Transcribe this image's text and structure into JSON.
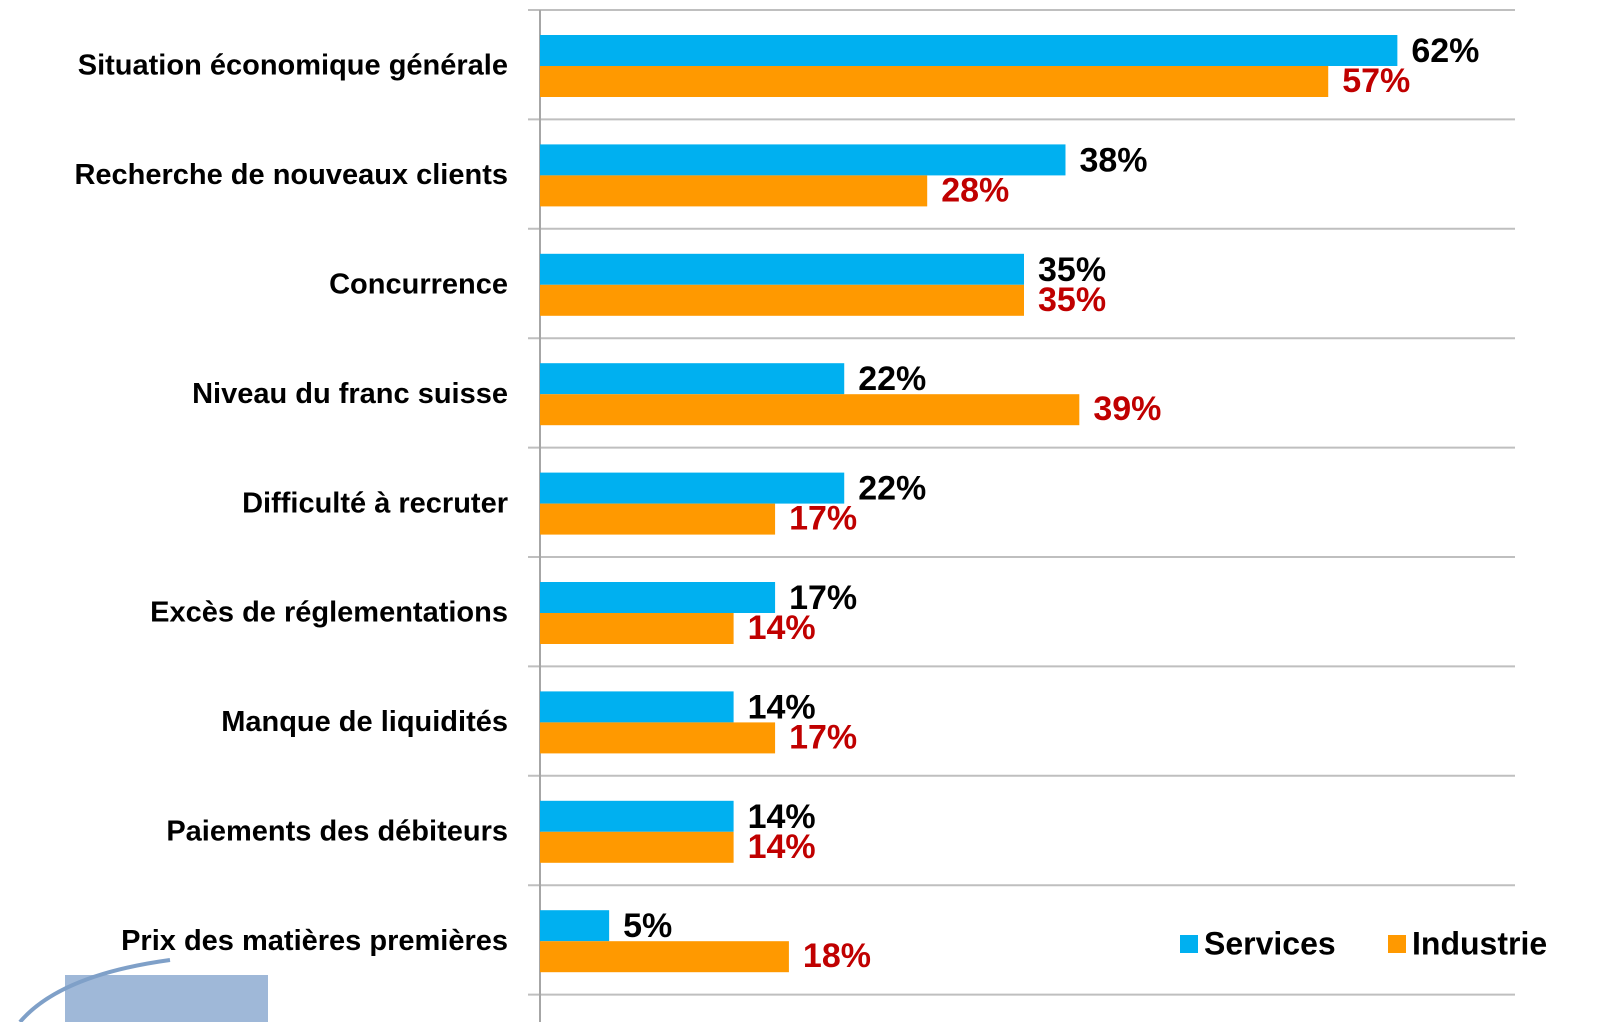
{
  "chart_data": {
    "type": "bar",
    "orientation": "horizontal",
    "categories": [
      "Situation économique générale",
      "Recherche de nouveaux clients",
      "Concurrence",
      "Niveau du franc suisse",
      "Difficulté à recruter",
      "Excès de réglementations",
      "Manque de liquidités",
      "Paiements des débiteurs",
      "Prix des matières premières"
    ],
    "series": [
      {
        "name": "Services",
        "color": "#00b0f0",
        "label_color": "#000000",
        "values": [
          62,
          38,
          35,
          22,
          22,
          17,
          14,
          14,
          5
        ],
        "value_labels": [
          "62%",
          "38%",
          "35%",
          "22%",
          "22%",
          "17%",
          "14%",
          "14%",
          "5%"
        ]
      },
      {
        "name": "Industrie",
        "color": "#ff9900",
        "label_color": "#c00000",
        "values": [
          57,
          28,
          35,
          39,
          17,
          14,
          17,
          14,
          18
        ],
        "value_labels": [
          "57%",
          "28%",
          "35%",
          "39%",
          "17%",
          "14%",
          "17%",
          "14%",
          "18%"
        ]
      }
    ],
    "xlim": [
      0,
      70
    ],
    "grid": true,
    "legend": "lower right"
  }
}
